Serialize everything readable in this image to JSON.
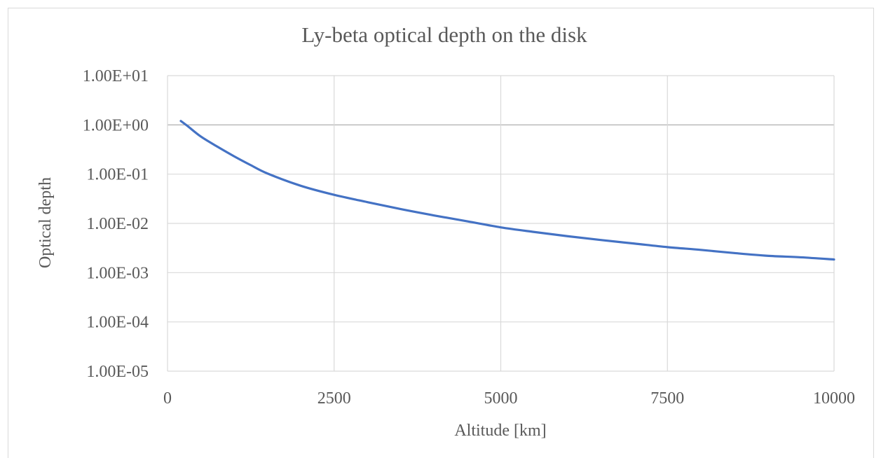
{
  "chart_data": {
    "type": "line",
    "title": "Ly-beta optical depth on the disk",
    "xlabel": "Altitude [km]",
    "ylabel": "Optical depth",
    "xlim": [
      0,
      10000
    ],
    "ylim": [
      1e-05,
      10
    ],
    "yscale": "log",
    "grid": true,
    "legend": "none",
    "x_ticks": [
      "0",
      "2500",
      "5000",
      "7500",
      "10000"
    ],
    "y_ticks": [
      "1.00E+01",
      "1.00E+00",
      "1.00E-01",
      "1.00E-02",
      "1.00E-03",
      "1.00E-04",
      "1.00E-05"
    ],
    "series": [
      {
        "color": "#4472c4",
        "x": [
          200,
          300,
          500,
          750,
          1000,
          1250,
          1500,
          2000,
          2500,
          3000,
          3500,
          4000,
          4500,
          5000,
          5500,
          6000,
          6500,
          7000,
          7500,
          8000,
          8500,
          9000,
          9500,
          10000
        ],
        "y": [
          1.2,
          0.95,
          0.58,
          0.36,
          0.23,
          0.152,
          0.103,
          0.058,
          0.038,
          0.027,
          0.0195,
          0.0145,
          0.011,
          0.0083,
          0.0067,
          0.0055,
          0.0046,
          0.0039,
          0.0033,
          0.0029,
          0.0025,
          0.0022,
          0.00205,
          0.00185
        ]
      }
    ]
  }
}
